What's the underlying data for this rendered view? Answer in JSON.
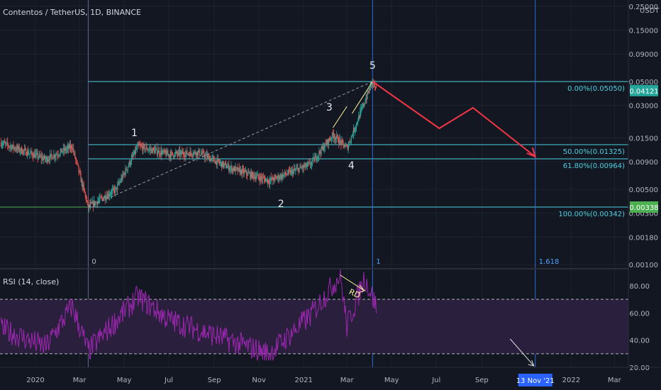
{
  "header": {
    "title": "Contentos / TetherUS, 1D, BINANCE"
  },
  "rsi_panel": {
    "title": "RSI (14, close)",
    "annotation": "RD"
  },
  "price_axis": {
    "currency": "USDT",
    "ticks": [
      "0.25000",
      "0.15000",
      "0.09000",
      "0.05000",
      "0.03000",
      "0.01500",
      "0.00900",
      "0.00500",
      "0.00300",
      "0.00180",
      "0.00100"
    ],
    "current_price": "0.04121",
    "current_color": "#26a69a",
    "low_price": "0.00338",
    "low_color": "#4caf50"
  },
  "rsi_axis": {
    "ticks": [
      "80.00",
      "60.00",
      "40.00",
      "20.00"
    ]
  },
  "time_axis": {
    "labels": [
      "2020",
      "Mar",
      "May",
      "Jul",
      "Sep",
      "Nov",
      "2021",
      "Mar",
      "May",
      "Jul",
      "Sep",
      "2022",
      "Mar"
    ],
    "highlight": "13 Nov '21",
    "highlight_color": "#2962ff"
  },
  "fib_levels": [
    {
      "label": "0.00%(0.05050)"
    },
    {
      "label": "50.00%(0.01325)"
    },
    {
      "label": "61.80%(0.00964)"
    },
    {
      "label": "100.00%(0.00342)"
    }
  ],
  "fib_ext_labels": [
    "0",
    "1",
    "1.618"
  ],
  "wave_labels": [
    "1",
    "2",
    "3",
    "4",
    "5"
  ],
  "colors": {
    "background": "#131722",
    "up": "#26a69a",
    "down": "#ef5350",
    "fib_line": "#4dd0e1",
    "rsi_line": "#9c27b0",
    "rsi_band": "#2a1f3d",
    "projection": "#f23645",
    "annotation": "#fff59d"
  },
  "chart_data": [
    {
      "type": "candlestick",
      "title": "Contentos / TetherUS, 1D, BINANCE",
      "scale": "log",
      "ylim": [
        0.001,
        0.25
      ],
      "series": [
        {
          "name": "Contentos / TetherUS",
          "key_points": [
            {
              "date": "2019-11-15",
              "close": 0.0135
            },
            {
              "date": "2020-01-15",
              "close": 0.0095
            },
            {
              "date": "2020-02-20",
              "close": 0.0125
            },
            {
              "date": "2020-03-13",
              "close": 0.00342
            },
            {
              "date": "2020-04-20",
              "close": 0.005
            },
            {
              "date": "2020-05-20",
              "close": 0.0125
            },
            {
              "date": "2020-07-01",
              "close": 0.0105
            },
            {
              "date": "2020-08-10",
              "close": 0.011
            },
            {
              "date": "2020-09-20",
              "close": 0.008
            },
            {
              "date": "2020-11-15",
              "close": 0.006
            },
            {
              "date": "2021-01-10",
              "close": 0.0085
            },
            {
              "date": "2021-02-10",
              "close": 0.016
            },
            {
              "date": "2021-03-01",
              "close": 0.012
            },
            {
              "date": "2021-04-05",
              "close": 0.0505
            },
            {
              "date": "2021-04-10",
              "close": 0.04121
            }
          ]
        }
      ]
    },
    {
      "type": "line",
      "title": "RSI (14, close)",
      "ylim": [
        20,
        90
      ],
      "bands": [
        30,
        70
      ],
      "series": [
        {
          "name": "RSI (14, close)",
          "key_points": [
            {
              "date": "2019-12-01",
              "value": 45
            },
            {
              "date": "2020-01-15",
              "value": 35
            },
            {
              "date": "2020-02-20",
              "value": 65
            },
            {
              "date": "2020-03-13",
              "value": 32
            },
            {
              "date": "2020-05-20",
              "value": 72
            },
            {
              "date": "2020-07-01",
              "value": 55
            },
            {
              "date": "2020-09-20",
              "value": 40
            },
            {
              "date": "2020-11-15",
              "value": 30
            },
            {
              "date": "2021-01-10",
              "value": 58
            },
            {
              "date": "2021-02-20",
              "value": 88
            },
            {
              "date": "2021-03-01",
              "value": 50
            },
            {
              "date": "2021-03-25",
              "value": 86
            },
            {
              "date": "2021-04-10",
              "value": 65
            }
          ]
        }
      ]
    }
  ]
}
